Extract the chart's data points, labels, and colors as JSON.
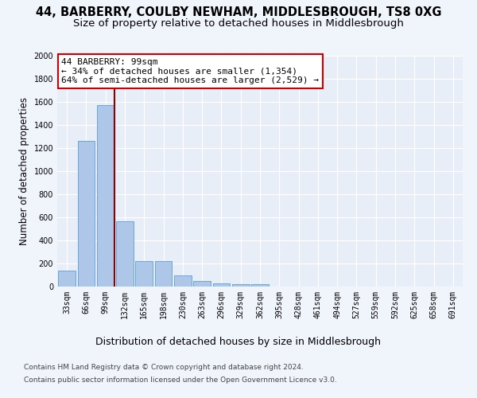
{
  "title1": "44, BARBERRY, COULBY NEWHAM, MIDDLESBROUGH, TS8 0XG",
  "title2": "Size of property relative to detached houses in Middlesbrough",
  "xlabel": "Distribution of detached houses by size in Middlesbrough",
  "ylabel": "Number of detached properties",
  "categories": [
    "33sqm",
    "66sqm",
    "99sqm",
    "132sqm",
    "165sqm",
    "198sqm",
    "230sqm",
    "263sqm",
    "296sqm",
    "329sqm",
    "362sqm",
    "395sqm",
    "428sqm",
    "461sqm",
    "494sqm",
    "527sqm",
    "559sqm",
    "592sqm",
    "625sqm",
    "658sqm",
    "691sqm"
  ],
  "values": [
    140,
    1265,
    1575,
    565,
    220,
    220,
    95,
    50,
    30,
    20,
    20,
    0,
    0,
    0,
    0,
    0,
    0,
    0,
    0,
    0,
    0
  ],
  "bar_color": "#aec6e8",
  "bar_edge_color": "#5a9fd4",
  "vline_color": "#8b0000",
  "annotation_text": "44 BARBERRY: 99sqm\n← 34% of detached houses are smaller (1,354)\n64% of semi-detached houses are larger (2,529) →",
  "annotation_box_color": "white",
  "annotation_box_edge": "#cc0000",
  "ylim": [
    0,
    2000
  ],
  "yticks": [
    0,
    200,
    400,
    600,
    800,
    1000,
    1200,
    1400,
    1600,
    1800,
    2000
  ],
  "footer1": "Contains HM Land Registry data © Crown copyright and database right 2024.",
  "footer2": "Contains public sector information licensed under the Open Government Licence v3.0.",
  "background_color": "#f0f4fb",
  "plot_background": "#e8eef8",
  "grid_color": "white",
  "title1_fontsize": 10.5,
  "title2_fontsize": 9.5,
  "xlabel_fontsize": 9,
  "ylabel_fontsize": 8.5,
  "tick_fontsize": 7,
  "annotation_fontsize": 8,
  "footer_fontsize": 6.5
}
